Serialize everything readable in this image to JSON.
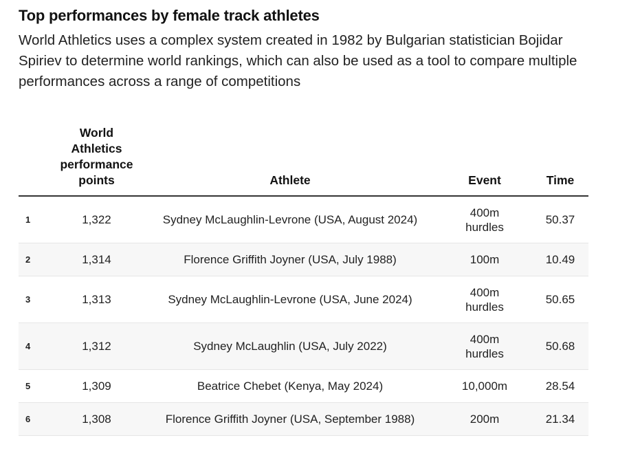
{
  "title": "Top performances by female track athletes",
  "subtitle": "World Athletics uses a complex system created in 1982 by Bulgarian statistician Bojidar Spiriev to determine world rankings, which can also be used as a tool to compare multiple performances across a range of competitions",
  "chart_data": {
    "type": "table",
    "columns": [
      "",
      "World Athletics performance points",
      "Athlete",
      "Event",
      "Time"
    ],
    "rows": [
      {
        "rank": "1",
        "points": "1,322",
        "athlete": "Sydney McLaughlin-Levrone (USA, August 2024)",
        "event": "400m hurdles",
        "time": "50.37"
      },
      {
        "rank": "2",
        "points": "1,314",
        "athlete": "Florence Griffith Joyner (USA, July 1988)",
        "event": "100m",
        "time": "10.49"
      },
      {
        "rank": "3",
        "points": "1,313",
        "athlete": "Sydney McLaughlin-Levrone (USA, June 2024)",
        "event": "400m hurdles",
        "time": "50.65"
      },
      {
        "rank": "4",
        "points": "1,312",
        "athlete": "Sydney McLaughlin (USA, July 2022)",
        "event": "400m hurdles",
        "time": "50.68"
      },
      {
        "rank": "5",
        "points": "1,309",
        "athlete": "Beatrice Chebet (Kenya, May 2024)",
        "event": "10,000m",
        "time": "28.54"
      },
      {
        "rank": "6",
        "points": "1,308",
        "athlete": "Florence Griffith Joyner (USA, September 1988)",
        "event": "200m",
        "time": "21.34"
      }
    ]
  }
}
